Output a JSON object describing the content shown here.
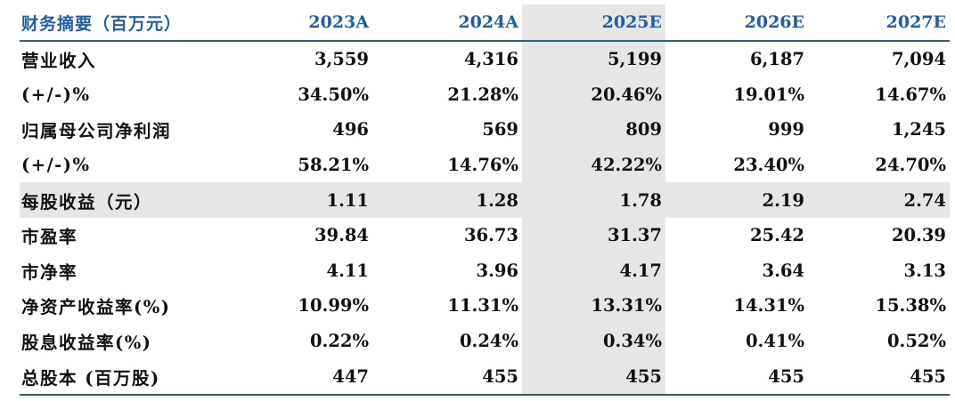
{
  "chart_data": {
    "type": "table",
    "title": "财务摘要（百万元）",
    "columns": [
      "2023A",
      "2024A",
      "2025E",
      "2026E",
      "2027E"
    ],
    "highlight_column": "2025E",
    "highlight_row": "每股收益（元）",
    "rows": [
      {
        "label": "营业收入",
        "values": [
          "3,559",
          "4,316",
          "5,199",
          "6,187",
          "7,094"
        ]
      },
      {
        "label": "(+/-)%",
        "values": [
          "34.50%",
          "21.28%",
          "20.46%",
          "19.01%",
          "14.67%"
        ]
      },
      {
        "label": "归属母公司净利润",
        "values": [
          "496",
          "569",
          "809",
          "999",
          "1,245"
        ]
      },
      {
        "label": "(+/-)%",
        "values": [
          "58.21%",
          "14.76%",
          "42.22%",
          "23.40%",
          "24.70%"
        ]
      },
      {
        "label": "每股收益（元）",
        "values": [
          "1.11",
          "1.28",
          "1.78",
          "2.19",
          "2.74"
        ]
      },
      {
        "label": "市盈率",
        "values": [
          "39.84",
          "36.73",
          "31.37",
          "25.42",
          "20.39"
        ]
      },
      {
        "label": "市净率",
        "values": [
          "4.11",
          "3.96",
          "4.17",
          "3.64",
          "3.13"
        ]
      },
      {
        "label": "净资产收益率(%)",
        "values": [
          "10.99%",
          "11.31%",
          "13.31%",
          "14.31%",
          "15.38%"
        ]
      },
      {
        "label": "股息收益率(%)",
        "values": [
          "0.22%",
          "0.24%",
          "0.34%",
          "0.41%",
          "0.52%"
        ]
      },
      {
        "label": "总股本 (百万股)",
        "values": [
          "447",
          "455",
          "455",
          "455",
          "455"
        ]
      }
    ],
    "colors": {
      "header_text": "#1f5ea8",
      "rule": "#1f5ea8",
      "highlight_fill": "#e6e6e6",
      "body_text": "#111111"
    }
  }
}
